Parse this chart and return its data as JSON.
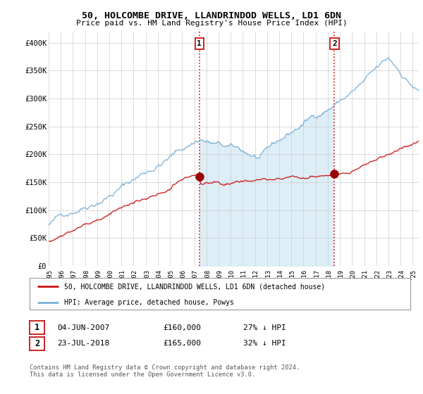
{
  "title": "50, HOLCOMBE DRIVE, LLANDRINDOD WELLS, LD1 6DN",
  "subtitle": "Price paid vs. HM Land Registry's House Price Index (HPI)",
  "ylabel_ticks": [
    "£0",
    "£50K",
    "£100K",
    "£150K",
    "£200K",
    "£250K",
    "£300K",
    "£350K",
    "£400K"
  ],
  "ytick_values": [
    0,
    50000,
    100000,
    150000,
    200000,
    250000,
    300000,
    350000,
    400000
  ],
  "ylim": [
    0,
    420000
  ],
  "xlim_start": 1995.0,
  "xlim_end": 2025.5,
  "xticks": [
    1995,
    1996,
    1997,
    1998,
    1999,
    2000,
    2001,
    2002,
    2003,
    2004,
    2005,
    2006,
    2007,
    2008,
    2009,
    2010,
    2011,
    2012,
    2013,
    2014,
    2015,
    2016,
    2017,
    2018,
    2019,
    2020,
    2021,
    2022,
    2023,
    2024,
    2025
  ],
  "hpi_color": "#7ab0d4",
  "hpi_fill_color": "#ddeef7",
  "price_color": "#cc1111",
  "vline_color": "#cc1111",
  "sale1_x": 2007.42,
  "sale1_y": 160000,
  "sale2_x": 2018.55,
  "sale2_y": 165000,
  "sale1_label": "1",
  "sale2_label": "2",
  "legend_line1": "50, HOLCOMBE DRIVE, LLANDRINDOD WELLS, LD1 6DN (detached house)",
  "legend_line2": "HPI: Average price, detached house, Powys",
  "table_row1": [
    "1",
    "04-JUN-2007",
    "£160,000",
    "27% ↓ HPI"
  ],
  "table_row2": [
    "2",
    "23-JUL-2018",
    "£165,000",
    "32% ↓ HPI"
  ],
  "footnote": "Contains HM Land Registry data © Crown copyright and database right 2024.\nThis data is licensed under the Open Government Licence v3.0.",
  "background_color": "#ffffff",
  "grid_color": "#cccccc"
}
